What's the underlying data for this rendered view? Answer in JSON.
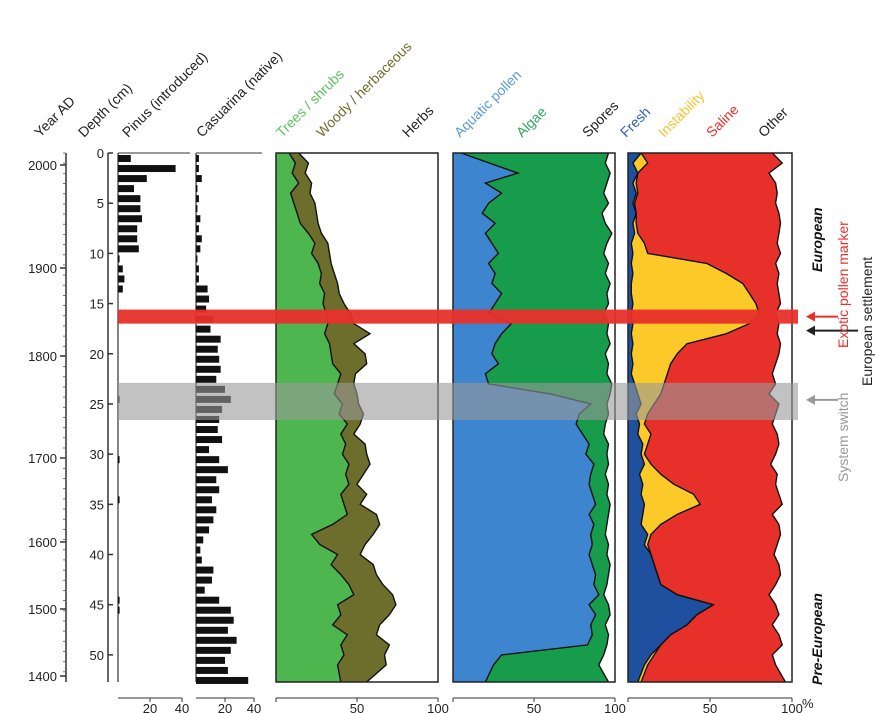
{
  "chart_data": {
    "type": "area",
    "depth_axis": {
      "label": "Depth (cm)",
      "ticks": [
        0,
        5,
        10,
        15,
        20,
        25,
        30,
        35,
        40,
        45,
        50
      ],
      "range": [
        0,
        52.7
      ]
    },
    "year_axis": {
      "label": "Year AD",
      "ticks": [
        2000,
        1900,
        1800,
        1700,
        1600,
        1500,
        1400
      ]
    },
    "tracks": [
      {
        "name": "Pinus (introduced)",
        "type": "bar",
        "xlim": [
          0,
          40
        ],
        "xticks": [
          20,
          40
        ],
        "depths": [
          0,
          1,
          2,
          3,
          4,
          5,
          6,
          7,
          8,
          9,
          10,
          11,
          12,
          13,
          24,
          30,
          34,
          44,
          45
        ],
        "values": [
          8,
          36,
          18,
          10,
          14,
          14,
          15,
          12,
          12,
          13,
          1,
          3,
          4,
          3,
          1,
          1,
          1,
          1,
          1
        ]
      },
      {
        "name": "Casuarina (native)",
        "type": "bar",
        "xlim": [
          0,
          40
        ],
        "xticks": [
          20,
          40
        ],
        "depths": [
          0,
          1,
          2,
          3,
          4,
          5,
          6,
          7,
          8,
          9,
          10,
          11,
          12,
          13,
          14,
          15,
          16,
          17,
          18,
          19,
          20,
          21,
          22,
          23,
          24,
          25,
          26,
          27,
          28,
          29,
          30,
          31,
          32,
          33,
          34,
          35,
          36,
          37,
          38,
          39,
          40,
          41,
          42,
          43,
          44,
          45,
          46,
          47,
          48,
          49,
          50,
          51,
          52
        ],
        "values": [
          2,
          2,
          4,
          1,
          2,
          1,
          3,
          2,
          4,
          3,
          1,
          2,
          2,
          8,
          9,
          7,
          12,
          10,
          17,
          15,
          16,
          17,
          14,
          20,
          24,
          18,
          16,
          15,
          18,
          9,
          16,
          22,
          14,
          16,
          11,
          14,
          12,
          9,
          5,
          3,
          4,
          12,
          11,
          6,
          16,
          24,
          26,
          22,
          28,
          24,
          20,
          22,
          36
        ]
      }
    ],
    "panels": [
      {
        "type": "area",
        "xlim": [
          0,
          100
        ],
        "xticks": [
          50,
          100
        ],
        "series": [
          {
            "name": "Trees / shrubs",
            "color": "#4eb64e"
          },
          {
            "name": "Woody / herbaceous",
            "color": "#6e6e2c"
          },
          {
            "name": "Herbs",
            "color": "#ffffff"
          }
        ],
        "boundaries": [
          {
            "depth": [
              0,
              1,
              2,
              3,
              4,
              5,
              6,
              7,
              8,
              9,
              10,
              11,
              12,
              13,
              14,
              15,
              16,
              17,
              18,
              19,
              20,
              21,
              22,
              23,
              24,
              25,
              26,
              27,
              28,
              29,
              30,
              31,
              32,
              33,
              34,
              35,
              36,
              37,
              38,
              39,
              40,
              41,
              42,
              43,
              44,
              45,
              46,
              47,
              48,
              49,
              50,
              51,
              52.7
            ],
            "values": [
              8,
              12,
              10,
              14,
              9,
              11,
              13,
              15,
              20,
              24,
              22,
              26,
              28,
              27,
              30,
              29,
              31,
              32,
              30,
              33,
              34,
              35,
              40,
              38,
              36,
              41,
              39,
              44,
              40,
              43,
              41,
              45,
              43,
              45,
              40,
              42,
              44,
              35,
              22,
              27,
              38,
              34,
              40,
              45,
              48,
              38,
              40,
              35,
              44,
              40,
              42,
              38,
              40
            ]
          },
          {
            "depth": [
              0,
              1,
              2,
              3,
              4,
              5,
              6,
              7,
              8,
              9,
              10,
              11,
              12,
              13,
              14,
              15,
              16,
              17,
              18,
              19,
              20,
              21,
              22,
              23,
              24,
              25,
              26,
              27,
              28,
              29,
              30,
              31,
              32,
              33,
              34,
              35,
              36,
              37,
              38,
              39,
              40,
              41,
              42,
              43,
              44,
              45,
              46,
              47,
              48,
              49,
              50,
              51,
              52.7
            ],
            "values": [
              14,
              20,
              18,
              22,
              21,
              24,
              25,
              26,
              28,
              32,
              33,
              34,
              36,
              38,
              39,
              42,
              46,
              48,
              58,
              48,
              55,
              56,
              49,
              48,
              50,
              51,
              54,
              52,
              48,
              55,
              56,
              58,
              54,
              50,
              56,
              52,
              62,
              64,
              60,
              55,
              52,
              60,
              62,
              66,
              72,
              74,
              70,
              64,
              62,
              70,
              67,
              68,
              56
            ]
          }
        ]
      },
      {
        "type": "area",
        "xlim": [
          0,
          100
        ],
        "xticks": [
          50,
          100
        ],
        "series": [
          {
            "name": "Aquatic pollen",
            "color": "#3d86cf"
          },
          {
            "name": "Algae",
            "color": "#169c4a"
          },
          {
            "name": "Spores",
            "color": "#ffffff"
          }
        ],
        "boundaries": [
          {
            "depth": [
              0,
              2,
              3,
              4,
              5,
              6,
              7,
              8,
              9,
              10,
              11,
              12,
              13,
              14,
              15,
              16,
              17,
              18,
              19,
              20,
              21,
              22,
              23,
              24,
              25,
              26,
              27,
              28,
              29,
              30,
              31,
              32,
              33,
              34,
              35,
              36,
              37,
              38,
              39,
              40,
              41,
              42,
              43,
              44,
              45,
              46,
              47,
              48,
              49,
              50,
              51,
              52.7
            ],
            "values": [
              5,
              40,
              20,
              30,
              22,
              18,
              26,
              20,
              24,
              28,
              22,
              26,
              24,
              30,
              26,
              22,
              36,
              30,
              26,
              24,
              28,
              20,
              22,
              60,
              85,
              78,
              76,
              80,
              84,
              82,
              87,
              85,
              84,
              86,
              88,
              84,
              87,
              85,
              86,
              84,
              86,
              88,
              87,
              90,
              84,
              88,
              85,
              86,
              83,
              30,
              25,
              20
            ]
          },
          {
            "depth": [
              0,
              1,
              2,
              3,
              4,
              5,
              6,
              7,
              8,
              9,
              10,
              11,
              12,
              13,
              14,
              15,
              16,
              17,
              18,
              19,
              20,
              21,
              22,
              23,
              24,
              25,
              26,
              27,
              28,
              29,
              30,
              31,
              32,
              33,
              34,
              35,
              36,
              37,
              38,
              39,
              40,
              41,
              42,
              43,
              44,
              45,
              46,
              47,
              48,
              49,
              50,
              51,
              52.7
            ],
            "values": [
              96,
              94,
              97,
              95,
              93,
              96,
              92,
              94,
              98,
              95,
              93,
              96,
              94,
              97,
              95,
              96,
              93,
              96,
              95,
              97,
              94,
              96,
              95,
              98,
              97,
              95,
              96,
              94,
              93,
              96,
              95,
              96,
              94,
              96,
              95,
              97,
              96,
              95,
              94,
              96,
              95,
              97,
              96,
              95,
              93,
              96,
              97,
              94,
              96,
              95,
              93,
              90,
              96
            ]
          }
        ]
      },
      {
        "type": "area",
        "xlim": [
          0,
          100
        ],
        "xticks": [
          50,
          100
        ],
        "series": [
          {
            "name": "Fresh",
            "color": "#1f50a0"
          },
          {
            "name": "Instability",
            "color": "#fbc928"
          },
          {
            "name": "Saline",
            "color": "#e8302a"
          },
          {
            "name": "Other",
            "color": "#ffffff"
          }
        ],
        "boundaries": [
          {
            "depth": [
              0,
              1,
              2,
              3,
              4,
              5,
              6,
              7,
              8,
              9,
              10,
              11,
              12,
              13,
              14,
              15,
              16,
              17,
              18,
              19,
              20,
              21,
              22,
              23,
              24,
              25,
              26,
              27,
              28,
              29,
              30,
              31,
              32,
              33,
              34,
              35,
              36,
              37,
              38,
              39,
              40,
              41,
              42,
              43,
              44,
              45,
              46,
              47,
              48,
              49,
              50,
              51,
              52.7
            ],
            "values": [
              8,
              3,
              6,
              3,
              5,
              3,
              5,
              3,
              4,
              2,
              3,
              2,
              3,
              2,
              2,
              3,
              2,
              3,
              2,
              3,
              2,
              3,
              2,
              4,
              6,
              8,
              5,
              7,
              6,
              9,
              8,
              10,
              7,
              9,
              8,
              10,
              9,
              8,
              12,
              10,
              14,
              16,
              18,
              20,
              30,
              52,
              42,
              36,
              26,
              20,
              14,
              10,
              6
            ]
          },
          {
            "depth": [
              0,
              1,
              2,
              3,
              4,
              5,
              6,
              7,
              8,
              9,
              10,
              11,
              12,
              13,
              14,
              15,
              16,
              17,
              18,
              19,
              20,
              21,
              22,
              23,
              24,
              25,
              26,
              27,
              28,
              29,
              30,
              31,
              32,
              33,
              34,
              35,
              36,
              37,
              38,
              39,
              40,
              41,
              42,
              43,
              44,
              45,
              46,
              47,
              48,
              49,
              50,
              51,
              52.7
            ],
            "values": [
              8,
              12,
              6,
              5,
              6,
              4,
              5,
              5,
              6,
              10,
              12,
              48,
              60,
              70,
              74,
              78,
              80,
              74,
              60,
              36,
              30,
              26,
              24,
              22,
              20,
              16,
              12,
              10,
              14,
              12,
              10,
              14,
              20,
              28,
              40,
              44,
              30,
              20,
              14,
              12,
              14,
              16,
              18,
              20,
              30,
              52,
              42,
              36,
              26,
              20,
              16,
              12,
              8
            ]
          },
          {
            "depth": [
              0,
              1,
              2,
              3,
              4,
              5,
              6,
              7,
              8,
              9,
              10,
              11,
              12,
              13,
              14,
              15,
              16,
              17,
              18,
              19,
              20,
              21,
              22,
              23,
              24,
              25,
              26,
              27,
              28,
              29,
              30,
              31,
              32,
              33,
              34,
              35,
              36,
              37,
              38,
              39,
              40,
              41,
              42,
              43,
              44,
              45,
              46,
              47,
              48,
              49,
              50,
              51,
              52.7
            ],
            "values": [
              88,
              94,
              86,
              90,
              91,
              90,
              92,
              93,
              92,
              91,
              93,
              90,
              92,
              91,
              92,
              93,
              90,
              92,
              91,
              93,
              92,
              90,
              88,
              90,
              86,
              92,
              90,
              88,
              91,
              92,
              90,
              87,
              91,
              90,
              92,
              94,
              88,
              92,
              93,
              91,
              89,
              92,
              93,
              90,
              86,
              90,
              92,
              88,
              92,
              94,
              88,
              90,
              96
            ]
          }
        ]
      }
    ],
    "annotations": [
      {
        "text": "European",
        "depth": 6
      },
      {
        "text": "Pre-European",
        "depth": 40
      },
      {
        "text": "Exotic pollen marker",
        "color": "#e8302a",
        "depth": 16.3
      },
      {
        "text": "European settlement",
        "color": "#222222",
        "depth": 17.5
      },
      {
        "text": "System switch",
        "color": "#999999",
        "depth": 24.5
      }
    ],
    "bands": [
      {
        "depth_range": [
          15.6,
          17.0
        ],
        "color": "#e8302a"
      },
      {
        "depth_range": [
          22.9,
          26.6
        ],
        "color": "#9a9a9a"
      }
    ],
    "axis_units": "%",
    "grid": false
  }
}
